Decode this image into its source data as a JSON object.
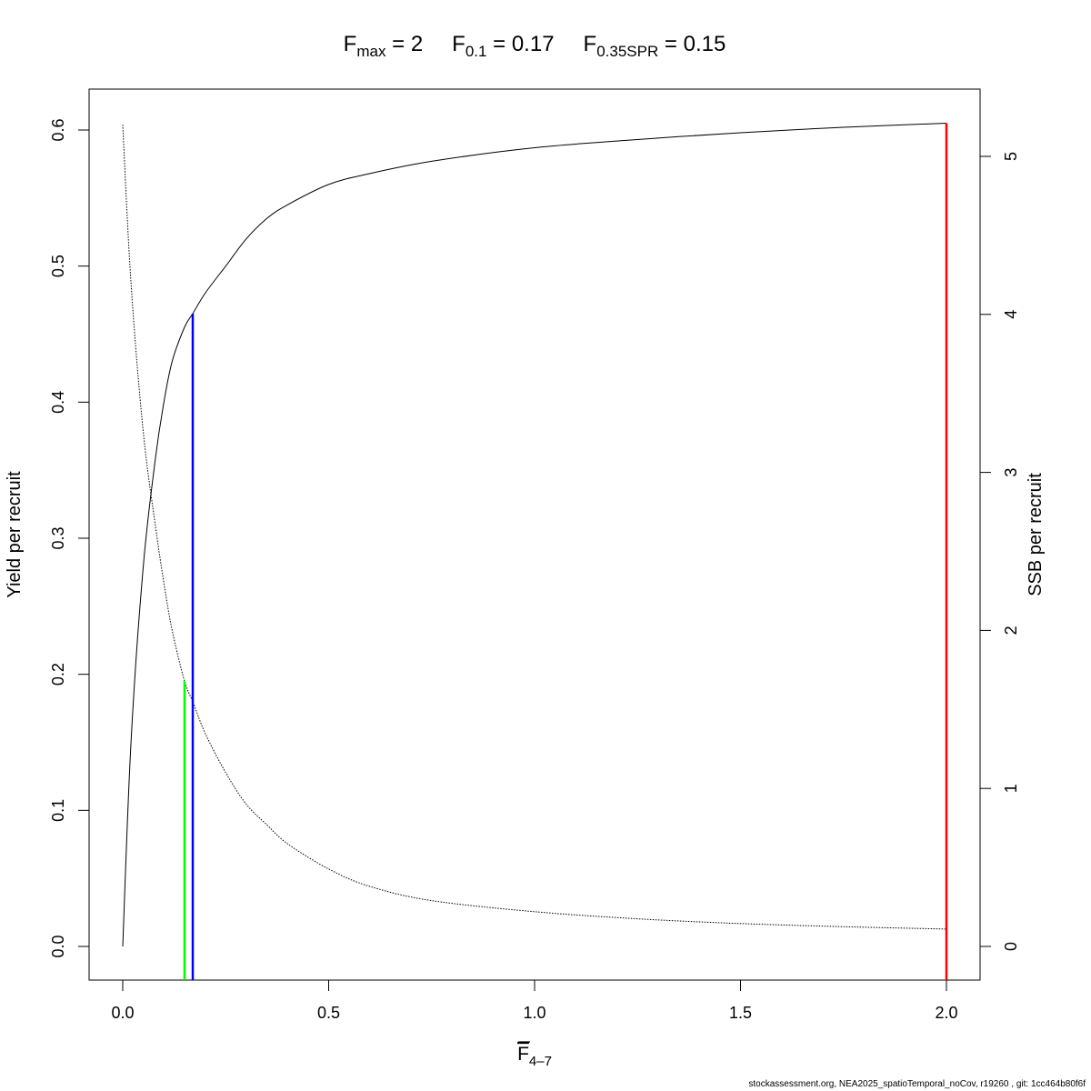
{
  "title": {
    "parts": [
      {
        "base": "F",
        "sub": "max",
        "rest": " = 2"
      },
      {
        "base": "F",
        "sub": "0.1",
        "rest": " = 0.17"
      },
      {
        "base": "F",
        "sub": "0.35SPR",
        "rest": " = 0.15"
      }
    ]
  },
  "footer": "stockassessment.org, NEA2025_spatioTemporal_noCov, r19260 , git: 1cc464b80f6f",
  "chart_data": {
    "type": "line",
    "xlabel": {
      "base": "F",
      "sub": "4–7",
      "overline": true
    },
    "ylabel": "Yield per recruit",
    "y2label": "SSB per recruit",
    "xlim": [
      0,
      2
    ],
    "ylim": [
      0,
      0.6
    ],
    "y2lim": [
      0,
      5.25
    ],
    "x_ticks": [
      "0.0",
      "0.5",
      "1.0",
      "1.5",
      "2.0"
    ],
    "y_ticks": [
      "0.0",
      "0.1",
      "0.2",
      "0.3",
      "0.4",
      "0.5",
      "0.6"
    ],
    "y2_ticks": [
      "0",
      "1",
      "2",
      "3",
      "4",
      "5"
    ],
    "grid": false,
    "series": [
      {
        "axis": "left",
        "style": "solid",
        "color": "#000000",
        "x": [
          0,
          0.02,
          0.05,
          0.08,
          0.1,
          0.12,
          0.15,
          0.17,
          0.2,
          0.25,
          0.3,
          0.35,
          0.4,
          0.5,
          0.6,
          0.75,
          1.0,
          1.25,
          1.5,
          1.75,
          2.0
        ],
        "y": [
          0,
          0.15,
          0.28,
          0.36,
          0.4,
          0.43,
          0.455,
          0.465,
          0.48,
          0.5,
          0.52,
          0.535,
          0.545,
          0.56,
          0.568,
          0.577,
          0.587,
          0.593,
          0.598,
          0.602,
          0.605
        ]
      },
      {
        "axis": "right",
        "style": "dotted",
        "color": "#000000",
        "x": [
          0,
          0.02,
          0.05,
          0.08,
          0.1,
          0.12,
          0.15,
          0.17,
          0.2,
          0.25,
          0.3,
          0.35,
          0.4,
          0.5,
          0.6,
          0.75,
          1.0,
          1.25,
          1.5,
          1.75,
          2.0
        ],
        "y": [
          5.2,
          4.2,
          3.25,
          2.65,
          2.3,
          2.0,
          1.68,
          1.55,
          1.35,
          1.1,
          0.9,
          0.77,
          0.65,
          0.49,
          0.38,
          0.29,
          0.22,
          0.175,
          0.145,
          0.125,
          0.11
        ]
      }
    ],
    "reference_lines": [
      {
        "name": "F0.35SPR",
        "x": 0.15,
        "y_top": 0.195,
        "color": "#00ff00"
      },
      {
        "name": "F0.1",
        "x": 0.17,
        "y_top": 0.465,
        "color": "#0000ff"
      },
      {
        "name": "Fmax",
        "x": 2.0,
        "y_top": 0.605,
        "color": "#ff0000"
      }
    ]
  }
}
